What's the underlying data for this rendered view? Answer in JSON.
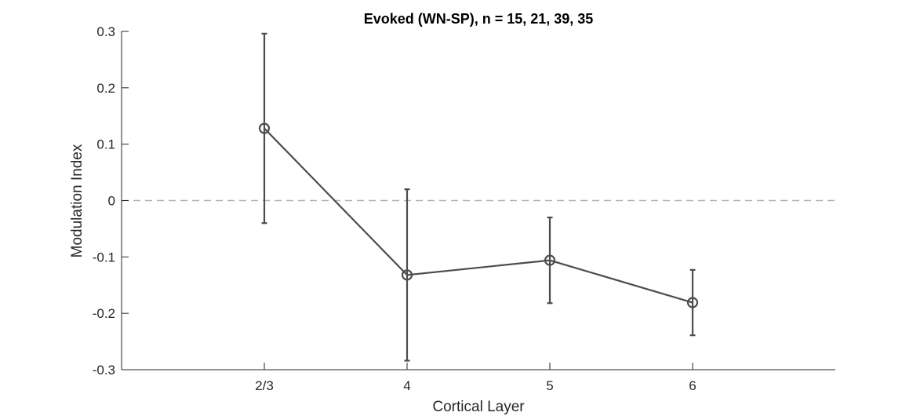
{
  "chart_data": {
    "type": "line",
    "title": "Evoked (WN-SP), n = 15, 21, 39, 35",
    "xlabel": "Cortical Layer",
    "ylabel": "Modulation Index",
    "categories": [
      "2/3",
      "4",
      "5",
      "6"
    ],
    "values": [
      0.128,
      -0.132,
      -0.106,
      -0.181
    ],
    "error_upper": [
      0.296,
      0.02,
      -0.03,
      -0.123
    ],
    "error_lower": [
      -0.04,
      -0.284,
      -0.182,
      -0.239
    ],
    "ylim": [
      -0.3,
      0.3
    ],
    "yticks": [
      -0.3,
      -0.2,
      -0.1,
      0,
      0.1,
      0.2,
      0.3
    ],
    "ytick_labels": [
      "-0.3",
      "-0.2",
      "-0.1",
      "0",
      "0.1",
      "0.2",
      "0.3"
    ],
    "xlim": [
      0,
      5
    ],
    "reference_line": {
      "y": 0,
      "style": "dashed"
    },
    "marker": "open-circle",
    "grid": false,
    "colors": {
      "series": "#4d4d4d",
      "reference": "#b3b3b3",
      "axis": "#262626"
    }
  }
}
